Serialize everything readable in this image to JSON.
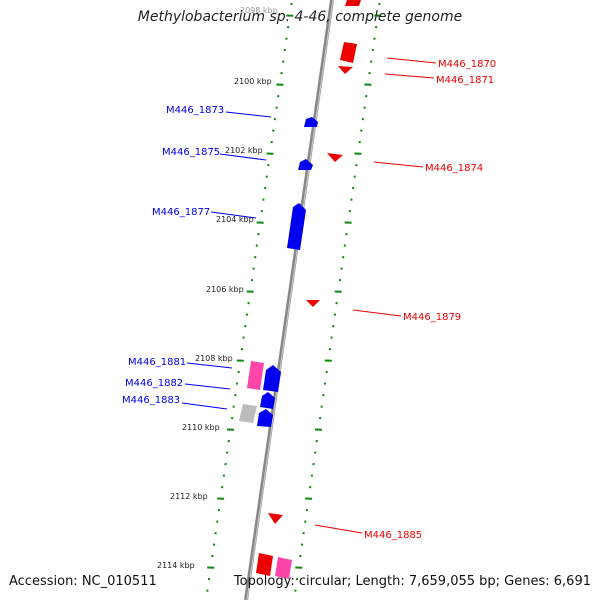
{
  "header": {
    "title": "Methylobacterium sp. 4-46, complete genome"
  },
  "footer": {
    "accession": "Accession: NC_010511",
    "summary": "Topology: circular; Length: 7,659,055 bp; Genes: 6,691"
  },
  "colors": {
    "forward_gene": "#0000ee",
    "reverse_gene": "#ee0000",
    "pseudogene": "#ff44aa",
    "rna_gene": "#bbbbbb",
    "tick": "#118811",
    "backbone": "#888888"
  },
  "ruler": {
    "labels": [
      "2098 kbp",
      "2100 kbp",
      "2102 kbp",
      "2104 kbp",
      "2106 kbp",
      "2108 kbp",
      "2110 kbp",
      "2112 kbp",
      "2114 kbp"
    ]
  },
  "gene_labels": {
    "forward": [
      "M446_1873",
      "M446_1875",
      "M446_1877",
      "M446_1881",
      "M446_1882",
      "M446_1883"
    ],
    "reverse": [
      "M446_1870",
      "M446_1871",
      "M446_1874",
      "M446_1879",
      "M446_1885"
    ]
  }
}
